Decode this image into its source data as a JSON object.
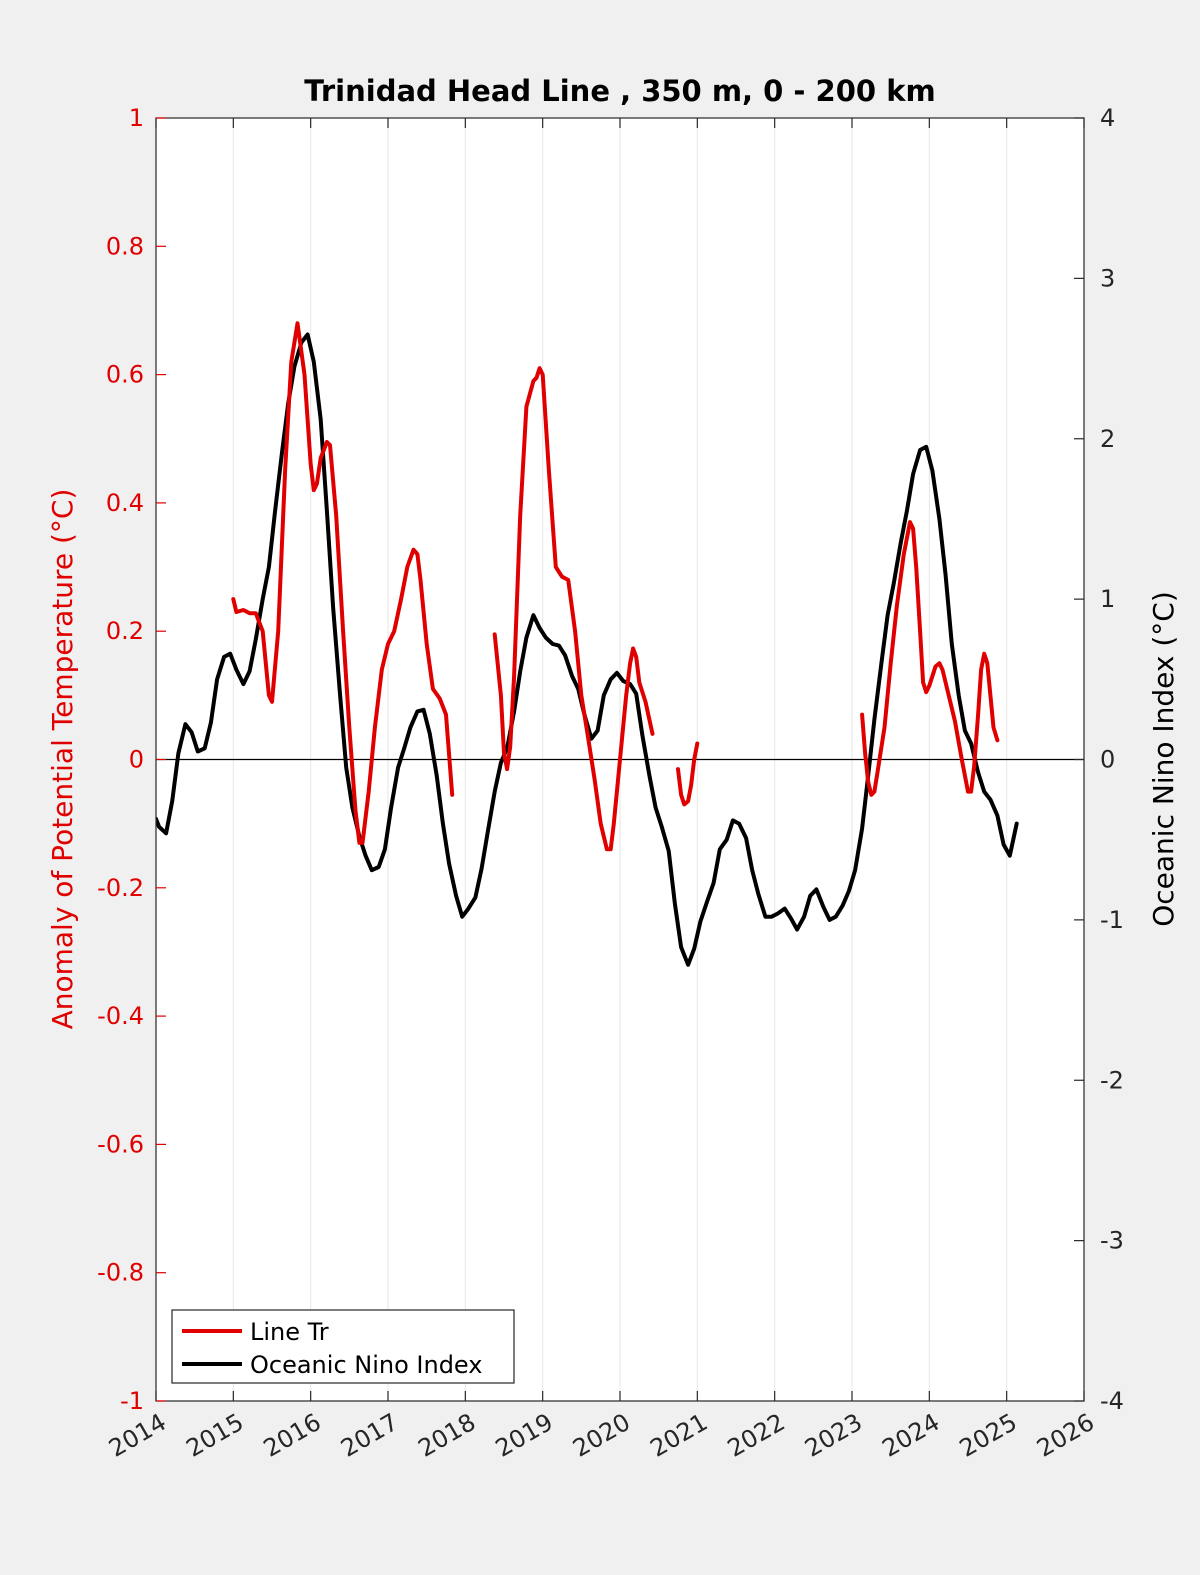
{
  "chart_data": {
    "type": "line",
    "title": "Trinidad Head Line , 350 m, 0 - 200 km",
    "xlabel": "",
    "ylabel": "Anomaly of Potential Temperature (°C)",
    "ylabel_right": "Oceanic Nino Index (°C)",
    "xlim": [
      2014,
      2026
    ],
    "ylim": [
      -1,
      1
    ],
    "ylim_right": [
      -4,
      4
    ],
    "x_ticks": [
      2014,
      2015,
      2016,
      2017,
      2018,
      2019,
      2020,
      2021,
      2022,
      2023,
      2024,
      2025,
      2026
    ],
    "x_tick_labels": [
      "2014",
      "2015",
      "2016",
      "2017",
      "2018",
      "2019",
      "2020",
      "2021",
      "2022",
      "2023",
      "2024",
      "2025",
      "2026"
    ],
    "y_ticks": [
      1,
      0.8,
      0.6,
      0.4,
      0.2,
      0,
      -0.2,
      -0.4,
      -0.6,
      -0.8,
      -1
    ],
    "y_tick_labels": [
      "1",
      "0.8",
      "0.6",
      "0.4",
      "0.2",
      "0",
      "-0.2",
      "-0.4",
      "-0.6",
      "-0.8",
      "-1"
    ],
    "y_ticks_right": [
      4,
      3,
      2,
      1,
      0,
      -1,
      -2,
      -3,
      -4
    ],
    "y_tick_labels_right": [
      "4",
      "3",
      "2",
      "1",
      "0",
      "-1",
      "-2",
      "-3",
      "-4"
    ],
    "grid": "vertical",
    "legend_position": "bottom-left",
    "colors": {
      "line_tr": "#e00000",
      "oni": "#000000",
      "axis_left": "#e00000",
      "axis_right": "#000000"
    },
    "series": [
      {
        "name": "Line Tr",
        "axis": "left",
        "segments": [
          [
            [
              2015.0,
              0.25
            ],
            [
              2015.04,
              0.23
            ],
            [
              2015.13,
              0.233
            ],
            [
              2015.21,
              0.228
            ],
            [
              2015.29,
              0.228
            ],
            [
              2015.38,
              0.2
            ],
            [
              2015.46,
              0.1
            ],
            [
              2015.5,
              0.09
            ],
            [
              2015.58,
              0.2
            ],
            [
              2015.67,
              0.45
            ],
            [
              2015.75,
              0.62
            ],
            [
              2015.83,
              0.68
            ],
            [
              2015.92,
              0.6
            ],
            [
              2016.0,
              0.46
            ],
            [
              2016.04,
              0.42
            ],
            [
              2016.08,
              0.43
            ],
            [
              2016.13,
              0.47
            ],
            [
              2016.21,
              0.495
            ],
            [
              2016.25,
              0.49
            ],
            [
              2016.33,
              0.38
            ],
            [
              2016.42,
              0.2
            ],
            [
              2016.5,
              0.05
            ],
            [
              2016.58,
              -0.08
            ],
            [
              2016.63,
              -0.13
            ],
            [
              2016.67,
              -0.13
            ],
            [
              2016.75,
              -0.05
            ],
            [
              2016.83,
              0.05
            ],
            [
              2016.92,
              0.14
            ],
            [
              2017.0,
              0.18
            ],
            [
              2017.08,
              0.2
            ],
            [
              2017.17,
              0.25
            ],
            [
              2017.25,
              0.3
            ],
            [
              2017.33,
              0.327
            ],
            [
              2017.38,
              0.32
            ],
            [
              2017.42,
              0.28
            ],
            [
              2017.5,
              0.18
            ],
            [
              2017.58,
              0.11
            ],
            [
              2017.67,
              0.095
            ],
            [
              2017.75,
              0.07
            ],
            [
              2017.83,
              -0.055
            ]
          ],
          [
            [
              2018.38,
              0.195
            ],
            [
              2018.46,
              0.1
            ],
            [
              2018.5,
              0.01
            ],
            [
              2018.54,
              -0.015
            ],
            [
              2018.58,
              0.02
            ],
            [
              2018.63,
              0.13
            ],
            [
              2018.71,
              0.38
            ],
            [
              2018.79,
              0.55
            ],
            [
              2018.88,
              0.59
            ],
            [
              2018.92,
              0.595
            ],
            [
              2018.96,
              0.61
            ],
            [
              2019.0,
              0.6
            ],
            [
              2019.08,
              0.45
            ],
            [
              2019.17,
              0.3
            ],
            [
              2019.25,
              0.285
            ],
            [
              2019.33,
              0.28
            ],
            [
              2019.42,
              0.2
            ],
            [
              2019.5,
              0.1
            ],
            [
              2019.58,
              0.04
            ],
            [
              2019.67,
              -0.03
            ],
            [
              2019.75,
              -0.1
            ],
            [
              2019.83,
              -0.14
            ],
            [
              2019.88,
              -0.14
            ],
            [
              2019.92,
              -0.1
            ],
            [
              2020.0,
              0.0
            ],
            [
              2020.08,
              0.1
            ],
            [
              2020.13,
              0.15
            ],
            [
              2020.17,
              0.173
            ],
            [
              2020.21,
              0.16
            ],
            [
              2020.25,
              0.12
            ],
            [
              2020.33,
              0.09
            ],
            [
              2020.42,
              0.04
            ]
          ],
          [
            [
              2020.75,
              -0.015
            ],
            [
              2020.79,
              -0.055
            ],
            [
              2020.83,
              -0.07
            ],
            [
              2020.88,
              -0.065
            ],
            [
              2020.92,
              -0.04
            ],
            [
              2020.96,
              0.0
            ],
            [
              2021.0,
              0.025
            ]
          ],
          [
            [
              2023.13,
              0.07
            ],
            [
              2023.17,
              0.01
            ],
            [
              2023.21,
              -0.035
            ],
            [
              2023.25,
              -0.055
            ],
            [
              2023.29,
              -0.05
            ],
            [
              2023.33,
              -0.02
            ],
            [
              2023.42,
              0.05
            ],
            [
              2023.5,
              0.15
            ],
            [
              2023.58,
              0.24
            ],
            [
              2023.67,
              0.32
            ],
            [
              2023.75,
              0.37
            ],
            [
              2023.79,
              0.36
            ],
            [
              2023.83,
              0.3
            ],
            [
              2023.88,
              0.2
            ],
            [
              2023.92,
              0.12
            ],
            [
              2023.96,
              0.105
            ],
            [
              2024.0,
              0.115
            ],
            [
              2024.08,
              0.145
            ],
            [
              2024.13,
              0.15
            ],
            [
              2024.17,
              0.14
            ],
            [
              2024.25,
              0.1
            ],
            [
              2024.33,
              0.06
            ],
            [
              2024.42,
              0.0
            ],
            [
              2024.5,
              -0.05
            ],
            [
              2024.54,
              -0.05
            ],
            [
              2024.58,
              -0.01
            ],
            [
              2024.63,
              0.07
            ],
            [
              2024.67,
              0.14
            ],
            [
              2024.71,
              0.165
            ],
            [
              2024.75,
              0.15
            ],
            [
              2024.79,
              0.1
            ],
            [
              2024.83,
              0.05
            ],
            [
              2024.88,
              0.03
            ]
          ]
        ]
      },
      {
        "name": "Oceanic Nino Index",
        "axis": "right",
        "segments": [
          [
            [
              2014.0,
              -0.37
            ],
            [
              2014.04,
              -0.42
            ],
            [
              2014.13,
              -0.46
            ],
            [
              2014.21,
              -0.26
            ],
            [
              2014.29,
              0.04
            ],
            [
              2014.38,
              0.22
            ],
            [
              2014.46,
              0.17
            ],
            [
              2014.54,
              0.05
            ],
            [
              2014.63,
              0.07
            ],
            [
              2014.71,
              0.23
            ],
            [
              2014.79,
              0.5
            ],
            [
              2014.88,
              0.64
            ],
            [
              2014.96,
              0.66
            ],
            [
              2015.04,
              0.56
            ],
            [
              2015.13,
              0.47
            ],
            [
              2015.21,
              0.55
            ],
            [
              2015.29,
              0.75
            ],
            [
              2015.38,
              1.0
            ],
            [
              2015.46,
              1.2
            ],
            [
              2015.54,
              1.55
            ],
            [
              2015.63,
              1.92
            ],
            [
              2015.71,
              2.22
            ],
            [
              2015.79,
              2.45
            ],
            [
              2015.88,
              2.6
            ],
            [
              2015.96,
              2.65
            ],
            [
              2016.04,
              2.48
            ],
            [
              2016.13,
              2.12
            ],
            [
              2016.21,
              1.55
            ],
            [
              2016.29,
              0.95
            ],
            [
              2016.38,
              0.4
            ],
            [
              2016.46,
              -0.05
            ],
            [
              2016.54,
              -0.3
            ],
            [
              2016.63,
              -0.48
            ],
            [
              2016.71,
              -0.6
            ],
            [
              2016.79,
              -0.69
            ],
            [
              2016.88,
              -0.67
            ],
            [
              2016.96,
              -0.56
            ],
            [
              2017.04,
              -0.3
            ],
            [
              2017.13,
              -0.05
            ],
            [
              2017.21,
              0.07
            ],
            [
              2017.29,
              0.2
            ],
            [
              2017.38,
              0.3
            ],
            [
              2017.46,
              0.31
            ],
            [
              2017.54,
              0.16
            ],
            [
              2017.63,
              -0.1
            ],
            [
              2017.71,
              -0.4
            ],
            [
              2017.79,
              -0.65
            ],
            [
              2017.88,
              -0.85
            ],
            [
              2017.96,
              -0.98
            ],
            [
              2018.04,
              -0.93
            ],
            [
              2018.13,
              -0.86
            ],
            [
              2018.21,
              -0.68
            ],
            [
              2018.29,
              -0.45
            ],
            [
              2018.38,
              -0.2
            ],
            [
              2018.46,
              -0.02
            ],
            [
              2018.54,
              0.07
            ],
            [
              2018.63,
              0.3
            ],
            [
              2018.71,
              0.55
            ],
            [
              2018.79,
              0.76
            ],
            [
              2018.88,
              0.9
            ],
            [
              2018.96,
              0.82
            ],
            [
              2019.04,
              0.76
            ],
            [
              2019.13,
              0.72
            ],
            [
              2019.21,
              0.71
            ],
            [
              2019.29,
              0.65
            ],
            [
              2019.38,
              0.52
            ],
            [
              2019.46,
              0.44
            ],
            [
              2019.54,
              0.28
            ],
            [
              2019.63,
              0.13
            ],
            [
              2019.71,
              0.18
            ],
            [
              2019.79,
              0.4
            ],
            [
              2019.88,
              0.5
            ],
            [
              2019.96,
              0.54
            ],
            [
              2020.04,
              0.49
            ],
            [
              2020.13,
              0.47
            ],
            [
              2020.21,
              0.41
            ],
            [
              2020.29,
              0.15
            ],
            [
              2020.38,
              -0.1
            ],
            [
              2020.46,
              -0.3
            ],
            [
              2020.54,
              -0.42
            ],
            [
              2020.63,
              -0.57
            ],
            [
              2020.71,
              -0.9
            ],
            [
              2020.79,
              -1.17
            ],
            [
              2020.88,
              -1.28
            ],
            [
              2020.96,
              -1.18
            ],
            [
              2021.04,
              -1.01
            ],
            [
              2021.13,
              -0.88
            ],
            [
              2021.21,
              -0.77
            ],
            [
              2021.29,
              -0.56
            ],
            [
              2021.38,
              -0.5
            ],
            [
              2021.46,
              -0.38
            ],
            [
              2021.54,
              -0.4
            ],
            [
              2021.63,
              -0.49
            ],
            [
              2021.71,
              -0.69
            ],
            [
              2021.79,
              -0.84
            ],
            [
              2021.88,
              -0.98
            ],
            [
              2021.96,
              -0.98
            ],
            [
              2022.04,
              -0.96
            ],
            [
              2022.13,
              -0.93
            ],
            [
              2022.21,
              -0.99
            ],
            [
              2022.29,
              -1.06
            ],
            [
              2022.38,
              -0.98
            ],
            [
              2022.46,
              -0.85
            ],
            [
              2022.54,
              -0.81
            ],
            [
              2022.63,
              -0.92
            ],
            [
              2022.71,
              -1.0
            ],
            [
              2022.79,
              -0.98
            ],
            [
              2022.88,
              -0.91
            ],
            [
              2022.96,
              -0.82
            ],
            [
              2023.04,
              -0.69
            ],
            [
              2023.13,
              -0.43
            ],
            [
              2023.21,
              -0.1
            ],
            [
              2023.29,
              0.25
            ],
            [
              2023.38,
              0.6
            ],
            [
              2023.46,
              0.9
            ],
            [
              2023.54,
              1.1
            ],
            [
              2023.63,
              1.35
            ],
            [
              2023.71,
              1.55
            ],
            [
              2023.79,
              1.78
            ],
            [
              2023.88,
              1.93
            ],
            [
              2023.96,
              1.95
            ],
            [
              2024.04,
              1.8
            ],
            [
              2024.13,
              1.5
            ],
            [
              2024.21,
              1.15
            ],
            [
              2024.29,
              0.72
            ],
            [
              2024.38,
              0.4
            ],
            [
              2024.46,
              0.18
            ],
            [
              2024.54,
              0.1
            ],
            [
              2024.63,
              -0.08
            ],
            [
              2024.71,
              -0.2
            ],
            [
              2024.79,
              -0.25
            ],
            [
              2024.88,
              -0.35
            ],
            [
              2024.96,
              -0.53
            ],
            [
              2025.04,
              -0.6
            ],
            [
              2025.13,
              -0.4
            ]
          ]
        ]
      }
    ]
  }
}
